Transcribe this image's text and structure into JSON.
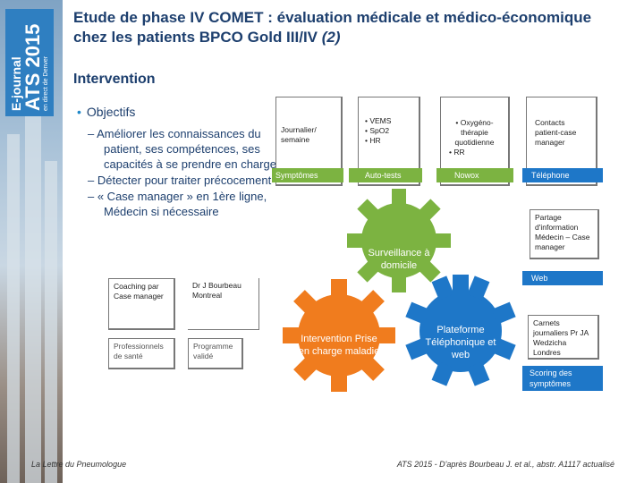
{
  "sidebar": {
    "journal_line1": "E-journal",
    "journal_line2": "ATS 2015",
    "journal_line3": "en direct de",
    "journal_line4": "Denver"
  },
  "header": {
    "title": "Etude de phase IV COMET : évaluation médicale et médico-économique chez les patients BPCO Gold III/IV",
    "title_suffix": "(2)",
    "subtitle": "Intervention"
  },
  "bullets": {
    "main": "Objectifs",
    "items": [
      "Améliorer les connaissances du patient, ses compétences, ses capacités à se prendre en charge",
      "Détecter pour traiter précocement",
      "« Case manager » en 1ère ligne, Médecin si nécessaire"
    ]
  },
  "left_diagram": {
    "coaching": "Coaching par Case manager",
    "dr": "Dr J Bourbeau Montreal",
    "pros": "Professionnels de santé",
    "programme": "Programme validé"
  },
  "top_boxes": {
    "journalier": "Journalier/ semaine",
    "vems_lines": [
      "• VEMS",
      "• SpO2",
      "• HR"
    ],
    "oxygeno": "• Oxygéno-thérapie quotidienne",
    "rr": "• RR",
    "contacts": "Contacts patient-case manager"
  },
  "labels": {
    "symptomes": "Symptômes",
    "autotests": "Auto-tests",
    "nowox": "Nowox",
    "telephone": "Téléphone",
    "web": "Web",
    "scoring": "Scoring des symptômes"
  },
  "right_boxes": {
    "partage": "Partage d'information Médecin – Case manager",
    "carnets": "Carnets journaliers Pr JA Wedzicha Londres"
  },
  "gears": {
    "surveillance": "Surveillance à domicile",
    "intervention": "Intervention Prise en charge maladie",
    "plateforme": "Plateforme Téléphonique et web"
  },
  "colors": {
    "green": "#7cb341",
    "orange": "#f07c1e",
    "blue": "#1e77c8",
    "title": "#1d3f6e"
  },
  "footer": {
    "left": "La Lettre du Pneumologue",
    "right": "ATS 2015 - D'après Bourbeau J. et al., abstr. A1117 actualisé"
  }
}
